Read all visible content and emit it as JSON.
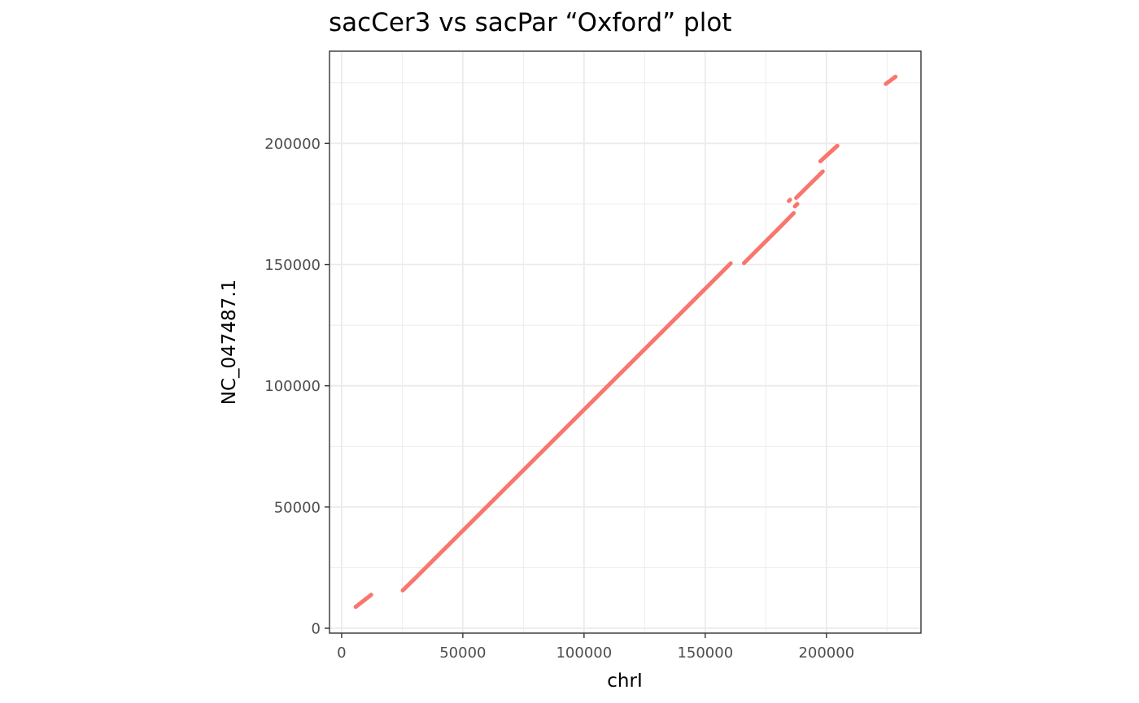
{
  "chart_data": {
    "type": "line",
    "title": "sacCer3 vs sacPar “Oxford” plot",
    "xlabel": "chrI",
    "ylabel": "NC_047487.1",
    "xlim": [
      -5000,
      239000
    ],
    "ylim": [
      -2000,
      238000
    ],
    "x_ticks": [
      0,
      50000,
      100000,
      150000,
      200000
    ],
    "x_tick_labels": [
      "0",
      "50000",
      "100000",
      "150000",
      "200000"
    ],
    "y_ticks": [
      0,
      50000,
      100000,
      150000,
      200000
    ],
    "y_tick_labels": [
      "0",
      "50000",
      "100000",
      "150000",
      "200000"
    ],
    "grid": true,
    "series_color": "#F8766D",
    "segments": [
      {
        "x": [
          5800,
          12200
        ],
        "y": [
          8800,
          13800
        ]
      },
      {
        "x": [
          25200,
          29500
        ],
        "y": [
          15600,
          19800
        ]
      },
      {
        "x": [
          29500,
          160500
        ],
        "y": [
          19800,
          150500
        ]
      },
      {
        "x": [
          166000,
          180000
        ],
        "y": [
          150600,
          164600
        ]
      },
      {
        "x": [
          180000,
          186500
        ],
        "y": [
          164600,
          171200
        ]
      },
      {
        "x": [
          184500,
          185000
        ],
        "y": [
          176200,
          176700
        ]
      },
      {
        "x": [
          187000,
          188000
        ],
        "y": [
          174000,
          175000
        ]
      },
      {
        "x": [
          187500,
          198500
        ],
        "y": [
          177500,
          188400
        ]
      },
      {
        "x": [
          197500,
          204500
        ],
        "y": [
          192600,
          199000
        ]
      },
      {
        "x": [
          224500,
          228500
        ],
        "y": [
          224500,
          227500
        ]
      }
    ]
  }
}
